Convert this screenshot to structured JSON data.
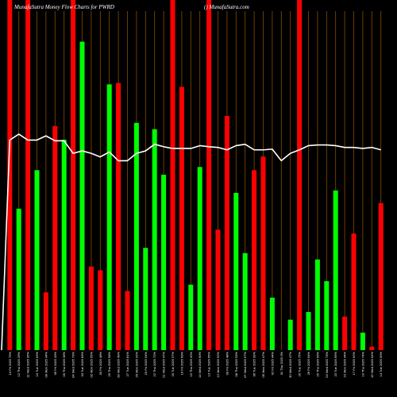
{
  "chart_data": {
    "type": "bar",
    "title": "MunafaSutra  Money  Flow  Charts for PWRD",
    "watermark": "() MunafaSutra.com",
    "y_range": [
      0,
      100
    ],
    "colors": {
      "background": "#000000",
      "up": "#00ff00",
      "down": "#ff0000",
      "gridline": "#8b4a00",
      "line": "#ffffff"
    },
    "bars": [
      {
        "label": "13 Fri 2025 75%",
        "value": 100,
        "color": "down"
      },
      {
        "label": "12 Thu 2025 26%",
        "value": 40.4,
        "color": "up"
      },
      {
        "label": "11 Wed 2025 35%",
        "value": 100,
        "color": "down"
      },
      {
        "label": "10 Tue 2025 63%",
        "value": 51.4,
        "color": "up"
      },
      {
        "label": "09 Mon 2025 44%",
        "value": 16.5,
        "color": "down"
      },
      {
        "label": "06 Fri 2025 43%",
        "value": 64.0,
        "color": "down"
      },
      {
        "label": "05 Thu 2025 28%",
        "value": 60.1,
        "color": "up"
      },
      {
        "label": "04 Wed 2025 73%",
        "value": 100,
        "color": "down"
      },
      {
        "label": "03 Tue 2025 83%",
        "value": 88.1,
        "color": "up"
      },
      {
        "label": "02 Mon 2025 55%",
        "value": 23.9,
        "color": "down"
      },
      {
        "label": "30 Fri 2025 48%",
        "value": 22.8,
        "color": "down"
      },
      {
        "label": "29 Thu 2025 58%",
        "value": 75.9,
        "color": "up"
      },
      {
        "label": "28 Wed 2025 49%",
        "value": 76.3,
        "color": "down"
      },
      {
        "label": "27 Tue 2025 81%",
        "value": 16.9,
        "color": "down"
      },
      {
        "label": "26 Mon 2025 32%",
        "value": 64.9,
        "color": "up"
      },
      {
        "label": "23 Fri 2025 54%",
        "value": 29.2,
        "color": "up"
      },
      {
        "label": "22 Thu 2025 72%",
        "value": 63.1,
        "color": "up"
      },
      {
        "label": "21 Wed 2025 47%",
        "value": 50.1,
        "color": "up"
      },
      {
        "label": "20 Tue 2025 57%",
        "value": 100,
        "color": "down"
      },
      {
        "label": "16 Fri 2025 69%",
        "value": 75.2,
        "color": "down"
      },
      {
        "label": "15 Thu 2025 42%",
        "value": 18.7,
        "color": "up"
      },
      {
        "label": "14 Wed 2025 60%",
        "value": 52.3,
        "color": "up"
      },
      {
        "label": "13 Tue 2025 65%",
        "value": 100,
        "color": "down"
      },
      {
        "label": "12 Mon 2025 52%",
        "value": 34.4,
        "color": "down"
      },
      {
        "label": "09 Fri 2025 48%",
        "value": 66.9,
        "color": "down"
      },
      {
        "label": "08 Thu 2025 53%",
        "value": 44.9,
        "color": "up"
      },
      {
        "label": "07 Wed 2025 67%",
        "value": 27.7,
        "color": "up"
      },
      {
        "label": "06 Tue 2025 39%",
        "value": 51.4,
        "color": "down"
      },
      {
        "label": "05 Mon 2025 47%",
        "value": 55.3,
        "color": "down"
      },
      {
        "label": "02 Fri 2025 44%",
        "value": 15.0,
        "color": "up"
      },
      {
        "label": "01 Thu 2025 0%",
        "value": 0,
        "color": "up"
      },
      {
        "label": "30 Wed 2025 47%",
        "value": 8.7,
        "color": "up"
      },
      {
        "label": "29 Tue 2025 75%",
        "value": 100,
        "color": "down"
      },
      {
        "label": "26 Fri 2025 64%",
        "value": 10.9,
        "color": "up"
      },
      {
        "label": "25 Thu 2025 56%",
        "value": 25.9,
        "color": "up"
      },
      {
        "label": "24 Wed 2025 73%",
        "value": 19.7,
        "color": "up"
      },
      {
        "label": "23 Tue 2025 69%",
        "value": 45.6,
        "color": "up"
      },
      {
        "label": "22 Mon 2025 44%",
        "value": 9.6,
        "color": "down"
      },
      {
        "label": "17 Fri 2025 62%",
        "value": 33.3,
        "color": "down"
      },
      {
        "label": "16 Thu 2025 74%",
        "value": 5.0,
        "color": "up"
      },
      {
        "label": "15 Wed 2025 64%",
        "value": 1.0,
        "color": "down"
      },
      {
        "label": "14 Tue 2025 50%",
        "value": 42.0,
        "color": "down"
      }
    ],
    "line_values": [
      0,
      60.0,
      61.7,
      60.0,
      60.0,
      61.2,
      59.8,
      59.8,
      56.2,
      56.9,
      56.2,
      55.2,
      56.6,
      54.1,
      54.1,
      56.2,
      56.9,
      58.8,
      58.1,
      57.6,
      57.6,
      57.6,
      58.4,
      58.1,
      57.9,
      57.2,
      58.4,
      58.8,
      57.2,
      57.2,
      57.4,
      54.1,
      56.2,
      57.2,
      58.4,
      58.6,
      58.6,
      58.4,
      57.9,
      57.9,
      57.6,
      57.9,
      57.2
    ]
  }
}
